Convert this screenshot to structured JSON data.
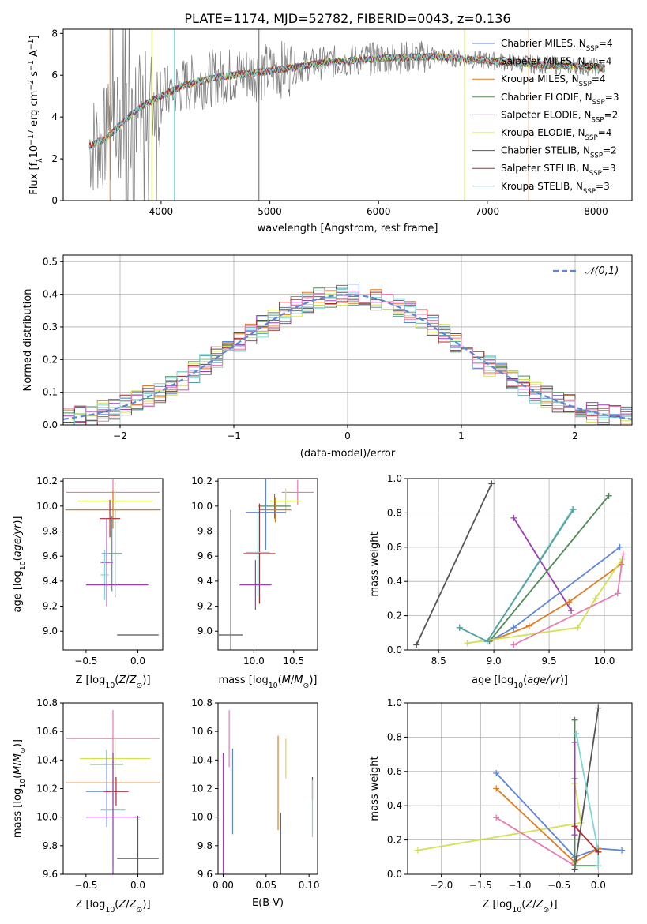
{
  "figure_title": "PLATE=1174, MJD=52782, FIBERID=0043, z=0.136",
  "colors": {
    "Chabrier MILES": "#5e86d8",
    "Salpeter MILES": "#56a0a0",
    "Kroupa MILES": "#e07b20",
    "Chabrier ELODIE": "#4f8a55",
    "Salpeter ELODIE": "#9a3fb2",
    "Kroupa ELODIE": "#d2e24d",
    "Chabrier STELIB": "#555555",
    "Salpeter STELIB": "#b0282c",
    "Kroupa STELIB": "#7fd6d6",
    "pink": "#e87bb1",
    "data": "#808080"
  },
  "chart_data": [
    {
      "type": "line",
      "panel": "spectrum",
      "xlabel": "wavelength [Angstrom, rest frame]",
      "ylabel": "Flux [f_λ 10^-17 erg cm^-2 s^-1 A^-1]",
      "xlim": [
        3100,
        8330
      ],
      "ylim": [
        0,
        8.2
      ],
      "xticks": [
        4000,
        5000,
        6000,
        7000,
        8000
      ],
      "yticks": [
        0,
        2,
        4,
        6,
        8
      ],
      "legend_loc": "upper right",
      "legend": [
        {
          "label": "Chabrier MILES, N_SSP=4",
          "color_key": "Chabrier MILES"
        },
        {
          "label": "Salpeter MILES, N_SSP=4",
          "color_key": "Salpeter MILES"
        },
        {
          "label": "Kroupa MILES, N_SSP=4",
          "color_key": "Kroupa MILES"
        },
        {
          "label": "Chabrier ELODIE, N_SSP=3",
          "color_key": "Chabrier ELODIE"
        },
        {
          "label": "Salpeter ELODIE, N_SSP=2",
          "color_key": "Salpeter ELODIE"
        },
        {
          "label": "Kroupa ELODIE, N_SSP=4",
          "color_key": "Kroupa ELODIE"
        },
        {
          "label": "Chabrier STELIB, N_SSP=2",
          "color_key": "Chabrier STELIB"
        },
        {
          "label": "Salpeter STELIB, N_SSP=3",
          "color_key": "Salpeter STELIB"
        },
        {
          "label": "Kroupa STELIB, N_SSP=3",
          "color_key": "Kroupa STELIB"
        }
      ],
      "data_points": [
        [
          3340,
          2.6
        ],
        [
          3500,
          3.0
        ],
        [
          3700,
          4.0
        ],
        [
          3850,
          4.6
        ],
        [
          4000,
          5.0
        ],
        [
          4200,
          5.5
        ],
        [
          4500,
          5.9
        ],
        [
          5000,
          6.2
        ],
        [
          5500,
          6.6
        ],
        [
          6000,
          6.8
        ],
        [
          6500,
          6.9
        ],
        [
          7000,
          6.7
        ],
        [
          7500,
          6.5
        ],
        [
          8000,
          6.4
        ],
        [
          8080,
          6.3
        ]
      ]
    },
    {
      "type": "histogram",
      "panel": "residuals",
      "xlabel": "(data-model)/error",
      "ylabel": "Normed distribution",
      "xlim": [
        -2.5,
        2.5
      ],
      "ylim": [
        0,
        0.52
      ],
      "xticks": [
        -2,
        -1,
        0,
        1,
        2
      ],
      "yticks": [
        0.0,
        0.1,
        0.2,
        0.3,
        0.4,
        0.5
      ],
      "grid": true,
      "legend_loc": "upper right",
      "reference": {
        "label": "𝒩(0,1)",
        "color": "#5e86d8",
        "style": "dashed"
      },
      "bin_width": 0.1
    },
    {
      "type": "errorbar",
      "panel": "age-vs-Z",
      "xlabel": "Z [log10(Z/Z⊙)]",
      "ylabel": "age [log10(age/yr)]",
      "xlim": [
        -0.72,
        0.24
      ],
      "ylim": [
        8.85,
        10.22
      ],
      "xticks": [
        -0.5,
        0.0
      ],
      "yticks": [
        9.0,
        9.2,
        9.4,
        9.6,
        9.8,
        10.0,
        10.2
      ],
      "points": [
        {
          "x": -0.24,
          "y": 10.11,
          "xerr": 0.45,
          "yerr": 0.15,
          "color_key": "pink"
        },
        {
          "x": -0.22,
          "y": 10.04,
          "xerr": 0.36,
          "yerr": 0.15,
          "color_key": "Kroupa ELODIE"
        },
        {
          "x": -0.24,
          "y": 9.97,
          "xerr": 0.46,
          "yerr": 0.15,
          "color_key": "Kroupa MILES"
        },
        {
          "x": -0.27,
          "y": 9.9,
          "xerr": 0.1,
          "yerr": 0.15,
          "color_key": "Salpeter STELIB"
        },
        {
          "x": -0.3,
          "y": 9.55,
          "xerr": 0.06,
          "yerr": 0.35,
          "color_key": "Salpeter ELODIE"
        },
        {
          "x": -0.32,
          "y": 9.45,
          "xerr": 0.04,
          "yerr": 0.2,
          "color_key": "Kroupa STELIB"
        },
        {
          "x": -0.25,
          "y": 9.62,
          "xerr": 0.1,
          "yerr": 0.3,
          "color_key": "Chabrier MILES"
        },
        {
          "x": -0.22,
          "y": 9.62,
          "xerr": 0.06,
          "yerr": 0.35,
          "color_key": "Chabrier ELODIE"
        },
        {
          "x": -0.2,
          "y": 9.37,
          "xerr": 0.3,
          "yerr": 0.0,
          "color_key": "Salpeter ELODIE"
        },
        {
          "x": 0.0,
          "y": 8.97,
          "xerr": 0.2,
          "yerr": 0.0,
          "color_key": "Chabrier STELIB"
        }
      ]
    },
    {
      "type": "errorbar",
      "panel": "age-vs-mass",
      "xlabel": "mass [log10(M/M⊙)]",
      "ylabel": "",
      "xlim": [
        9.55,
        10.8
      ],
      "ylim": [
        8.85,
        10.22
      ],
      "xticks": [
        10.0,
        10.5
      ],
      "yticks": [
        9.0,
        9.2,
        9.4,
        9.6,
        9.8,
        10.0,
        10.2
      ],
      "points": [
        {
          "x": 10.55,
          "y": 10.11,
          "xerr": 0.2,
          "yerr": 0.1,
          "color_key": "pink"
        },
        {
          "x": 10.4,
          "y": 10.04,
          "xerr": 0.2,
          "yerr": 0.1,
          "color_key": "Kroupa ELODIE"
        },
        {
          "x": 10.26,
          "y": 10.0,
          "xerr": 0.2,
          "yerr": 0.1,
          "color_key": "Chabrier ELODIE"
        },
        {
          "x": 10.27,
          "y": 9.97,
          "xerr": 0.2,
          "yerr": 0.1,
          "color_key": "Kroupa MILES"
        },
        {
          "x": 10.15,
          "y": 9.95,
          "xerr": 0.25,
          "yerr": 0.3,
          "color_key": "Chabrier MILES"
        },
        {
          "x": 10.07,
          "y": 9.62,
          "xerr": 0.2,
          "yerr": 0.4,
          "color_key": "Salpeter STELIB"
        },
        {
          "x": 10.05,
          "y": 9.63,
          "xerr": 0.15,
          "yerr": 0.35,
          "color_key": "Kroupa STELIB"
        },
        {
          "x": 10.02,
          "y": 9.37,
          "xerr": 0.2,
          "yerr": 0.2,
          "color_key": "Salpeter ELODIE"
        },
        {
          "x": 9.71,
          "y": 8.97,
          "xerr": 0.15,
          "yerr": 1.0,
          "color_key": "Chabrier STELIB"
        }
      ]
    },
    {
      "type": "line",
      "panel": "weight-vs-age",
      "xlabel": "age [log10(age/yr)]",
      "ylabel": "mass weight",
      "xlim": [
        8.22,
        10.25
      ],
      "ylim": [
        0,
        1.0
      ],
      "xticks": [
        8.5,
        9.0,
        9.5,
        10.0
      ],
      "yticks": [
        0.0,
        0.2,
        0.4,
        0.6,
        0.8,
        1.0
      ],
      "grid": true,
      "series": [
        {
          "color_key": "Chabrier STELIB",
          "points": [
            [
              8.3,
              0.03
            ],
            [
              8.98,
              0.97
            ]
          ]
        },
        {
          "color_key": "Salpeter ELODIE",
          "points": [
            [
              9.18,
              0.77
            ],
            [
              9.7,
              0.23
            ]
          ]
        },
        {
          "color_key": "Chabrier MILES",
          "points": [
            [
              8.96,
              0.05
            ],
            [
              9.18,
              0.13
            ],
            [
              10.14,
              0.6
            ]
          ]
        },
        {
          "color_key": "Kroupa MILES",
          "points": [
            [
              8.96,
              0.05
            ],
            [
              9.32,
              0.14
            ],
            [
              9.68,
              0.28
            ],
            [
              10.15,
              0.5
            ]
          ]
        },
        {
          "color_key": "Chabrier ELODIE",
          "points": [
            [
              8.96,
              0.05
            ],
            [
              10.04,
              0.9
            ]
          ]
        },
        {
          "color_key": "Kroupa ELODIE",
          "points": [
            [
              8.76,
              0.04
            ],
            [
              9.76,
              0.13
            ],
            [
              9.92,
              0.3
            ],
            [
              10.16,
              0.53
            ]
          ]
        },
        {
          "color_key": "pink",
          "points": [
            [
              9.18,
              0.03
            ],
            [
              10.12,
              0.33
            ],
            [
              10.17,
              0.56
            ]
          ]
        },
        {
          "color_key": "Kroupa STELIB",
          "points": [
            [
              8.69,
              0.13
            ],
            [
              8.94,
              0.05
            ],
            [
              9.71,
              0.82
            ]
          ]
        },
        {
          "color_key": "Salpeter MILES",
          "points": [
            [
              8.69,
              0.13
            ],
            [
              8.94,
              0.05
            ],
            [
              9.72,
              0.82
            ]
          ]
        }
      ]
    },
    {
      "type": "errorbar",
      "panel": "mass-vs-Z",
      "xlabel": "Z [log10(Z/Z⊙)]",
      "ylabel": "mass [log10(M/M⊙)]",
      "xlim": [
        -0.72,
        0.24
      ],
      "ylim": [
        9.6,
        10.8
      ],
      "xticks": [
        -0.5,
        0.0
      ],
      "yticks": [
        9.6,
        9.8,
        10.0,
        10.2,
        10.4,
        10.6,
        10.8
      ],
      "points": [
        {
          "x": -0.24,
          "y": 10.55,
          "xerr": 0.45,
          "yerr": 0.2,
          "color_key": "pink"
        },
        {
          "x": -0.22,
          "y": 10.41,
          "xerr": 0.34,
          "yerr": 0.15,
          "color_key": "Kroupa ELODIE"
        },
        {
          "x": -0.3,
          "y": 10.37,
          "xerr": 0.16,
          "yerr": 0.1,
          "color_key": "Chabrier ELODIE"
        },
        {
          "x": -0.24,
          "y": 10.24,
          "xerr": 0.45,
          "yerr": 0.15,
          "color_key": "Kroupa MILES"
        },
        {
          "x": -0.3,
          "y": 10.18,
          "xerr": 0.2,
          "yerr": 0.25,
          "color_key": "Chabrier MILES"
        },
        {
          "x": -0.21,
          "y": 10.18,
          "xerr": 0.12,
          "yerr": 0.1,
          "color_key": "Salpeter STELIB"
        },
        {
          "x": -0.24,
          "y": 10.05,
          "xerr": 0.12,
          "yerr": 0.4,
          "color_key": "Kroupa STELIB"
        },
        {
          "x": -0.24,
          "y": 10.0,
          "xerr": 0.26,
          "yerr": 0.45,
          "color_key": "Salpeter ELODIE"
        },
        {
          "x": 0.0,
          "y": 9.71,
          "xerr": 0.2,
          "yerr": 0.3,
          "color_key": "Chabrier STELIB"
        }
      ]
    },
    {
      "type": "errorbar",
      "panel": "mass-vs-ebv",
      "xlabel": "E(B-V)",
      "ylabel": "",
      "xlim": [
        -0.006,
        0.11
      ],
      "ylim": [
        9.6,
        10.8
      ],
      "xticks": [
        0.0,
        0.05,
        0.1
      ],
      "yticks": [
        9.6,
        9.8,
        10.0,
        10.2,
        10.4,
        10.6,
        10.8
      ],
      "points": [
        {
          "x": 0.0,
          "y": 10.0,
          "xerr": 0.0,
          "yerr": 0.45,
          "color_key": "Salpeter ELODIE"
        },
        {
          "x": 0.007,
          "y": 10.55,
          "xerr": 0.0,
          "yerr": 0.2,
          "color_key": "pink"
        },
        {
          "x": 0.011,
          "y": 10.18,
          "xerr": 0.0,
          "yerr": 0.3,
          "color_key": "Chabrier MILES"
        },
        {
          "x": 0.064,
          "y": 10.24,
          "xerr": 0.0,
          "yerr": 0.33,
          "color_key": "Kroupa MILES"
        },
        {
          "x": 0.067,
          "y": 9.71,
          "xerr": 0.0,
          "yerr": 0.32,
          "color_key": "Chabrier STELIB"
        },
        {
          "x": 0.073,
          "y": 10.41,
          "xerr": 0.0,
          "yerr": 0.14,
          "color_key": "Kroupa ELODIE"
        },
        {
          "x": 0.104,
          "y": 10.2,
          "xerr": 0.0,
          "yerr": 0.08,
          "color_key": "Salpeter STELIB"
        },
        {
          "x": 0.104,
          "y": 10.06,
          "xerr": 0.0,
          "yerr": 0.2,
          "color_key": "Kroupa STELIB"
        }
      ]
    },
    {
      "type": "line",
      "panel": "weight-vs-Z",
      "xlabel": "Z [log10(Z/Z⊙)]",
      "ylabel": "mass weight",
      "xlim": [
        -2.43,
        0.43
      ],
      "ylim": [
        0,
        1.0
      ],
      "xticks": [
        -2.0,
        -1.5,
        -1.0,
        -0.5,
        0.0
      ],
      "yticks": [
        0.0,
        0.2,
        0.4,
        0.6,
        0.8,
        1.0
      ],
      "grid": true,
      "series": [
        {
          "color_key": "Kroupa ELODIE",
          "points": [
            [
              -2.3,
              0.14
            ],
            [
              -0.22,
              0.3
            ],
            [
              -0.3,
              0.53
            ]
          ]
        },
        {
          "color_key": "pink",
          "points": [
            [
              -1.3,
              0.33
            ],
            [
              -0.3,
              0.05
            ],
            [
              -0.3,
              0.56
            ]
          ]
        },
        {
          "color_key": "Chabrier MILES",
          "points": [
            [
              -1.3,
              0.59
            ],
            [
              -0.3,
              0.1
            ],
            [
              0.0,
              0.15
            ],
            [
              0.3,
              0.14
            ]
          ]
        },
        {
          "color_key": "Kroupa MILES",
          "points": [
            [
              -1.3,
              0.5
            ],
            [
              -0.3,
              0.07
            ],
            [
              0.0,
              0.15
            ]
          ]
        },
        {
          "color_key": "Chabrier STELIB",
          "points": [
            [
              -0.3,
              0.03
            ],
            [
              0.0,
              0.97
            ]
          ]
        },
        {
          "color_key": "Chabrier ELODIE",
          "points": [
            [
              -0.3,
              0.9
            ],
            [
              -0.3,
              0.05
            ],
            [
              0.0,
              0.05
            ]
          ]
        },
        {
          "color_key": "Salpeter ELODIE",
          "points": [
            [
              -0.3,
              0.77
            ],
            [
              -0.3,
              0.23
            ]
          ]
        },
        {
          "color_key": "Kroupa STELIB",
          "points": [
            [
              -0.28,
              0.82
            ],
            [
              0.0,
              0.13
            ],
            [
              0.0,
              0.05
            ]
          ]
        },
        {
          "color_key": "Salpeter STELIB",
          "points": [
            [
              -0.3,
              0.28
            ],
            [
              0.0,
              0.13
            ]
          ]
        }
      ]
    }
  ]
}
